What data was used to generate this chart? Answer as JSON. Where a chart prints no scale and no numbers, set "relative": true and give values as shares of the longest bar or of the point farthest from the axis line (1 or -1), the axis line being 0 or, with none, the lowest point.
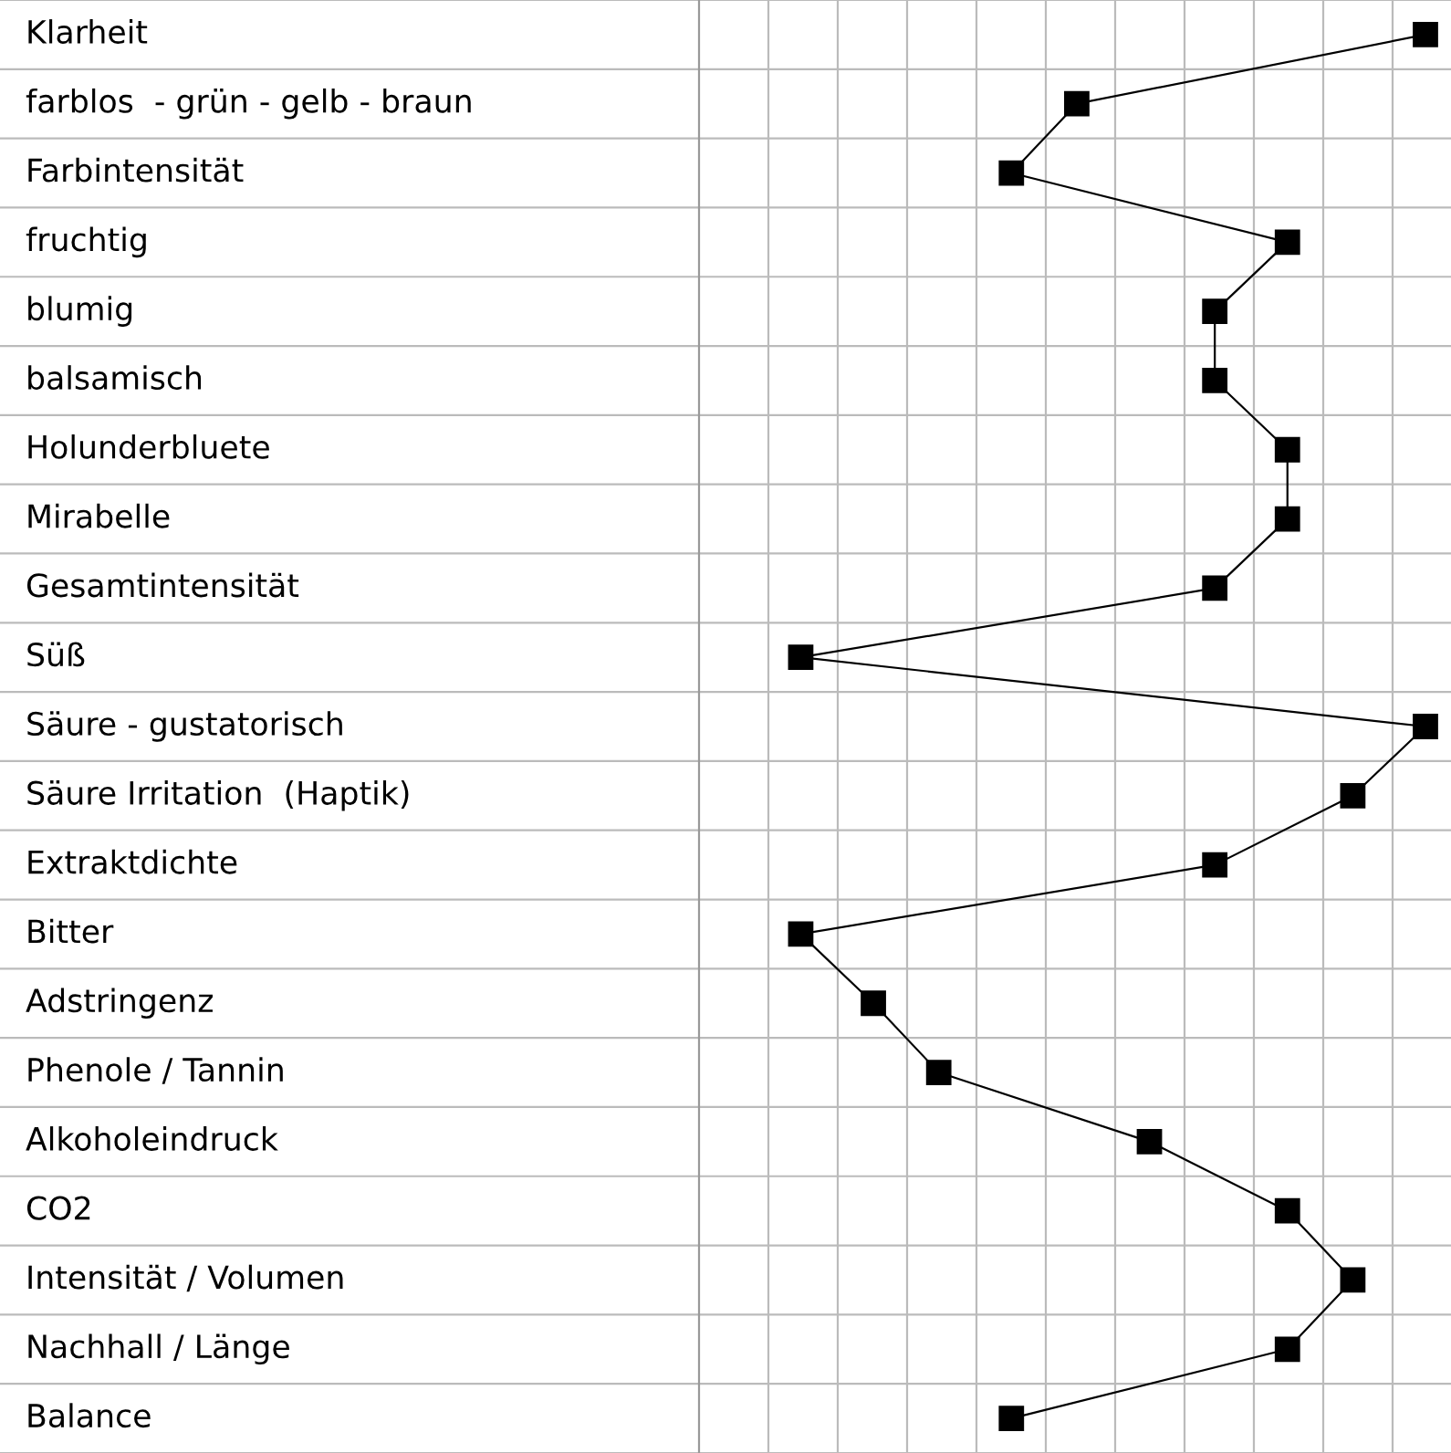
{
  "chart_data": {
    "type": "line",
    "orientation": "horizontal",
    "relative": true,
    "categories": [
      "Klarheit",
      "farblos  - grün - gelb - braun",
      "Farbintensität",
      "fruchtig",
      "blumig",
      "balsamisch",
      "Holunderbluete",
      "Mirabelle",
      "Gesamtintensität",
      "Süß",
      "Säure - gustatorisch",
      "Säure Irritation  (Haptik)",
      "Extraktdichte",
      "Bitter",
      "Adstringenz",
      "Phenole / Tannin",
      "Alkoholeindruck",
      "CO2",
      "Intensität / Volumen",
      "Nachhall / Länge",
      "Balance"
    ],
    "series": [
      {
        "color": "#000000",
        "values": [
          1.0,
          0.52,
          0.43,
          0.81,
          0.71,
          0.71,
          0.81,
          0.81,
          0.71,
          0.14,
          1.0,
          0.9,
          0.71,
          0.14,
          0.24,
          0.33,
          0.62,
          0.81,
          0.9,
          0.81,
          0.43
        ]
      }
    ],
    "marker": "square",
    "line_style": "solid",
    "grid": true
  }
}
